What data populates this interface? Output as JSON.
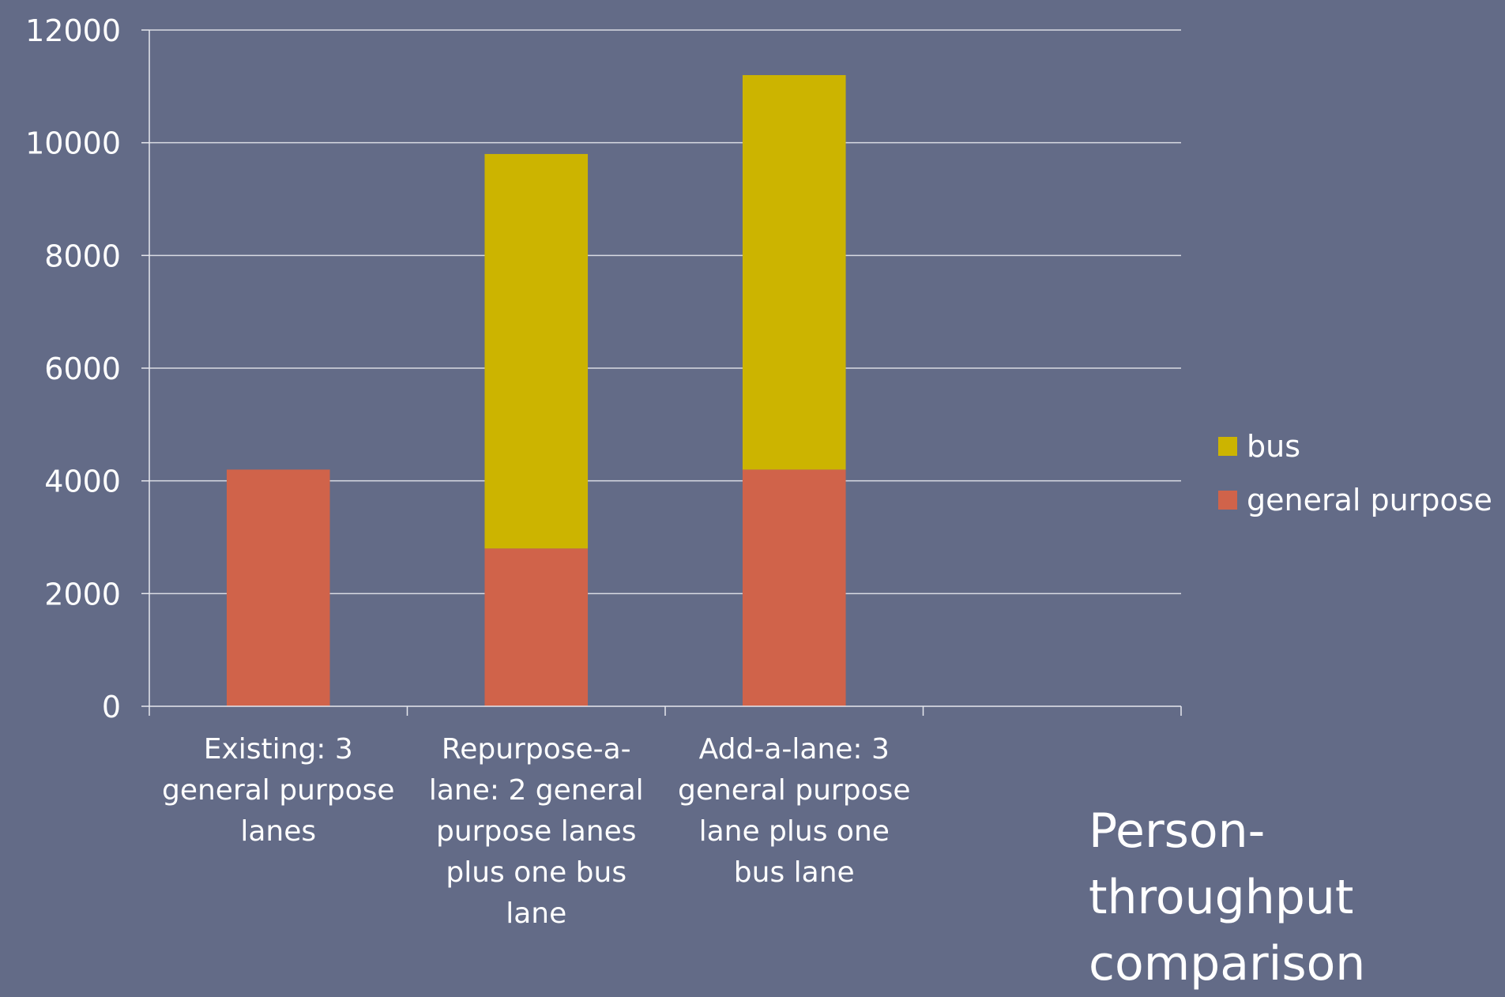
{
  "colors": {
    "background": "#636b87",
    "gridline": "#d9dbe3",
    "axis": "#e6e8ee",
    "text": "#ffffff",
    "bus": "#ccb400",
    "general_purpose": "#d0634a"
  },
  "caption": {
    "line1": "Person-throughput",
    "line2": "comparison"
  },
  "chart_data": {
    "type": "bar",
    "stacked": true,
    "categories": [
      [
        "Existing: 3",
        "general purpose",
        "lanes"
      ],
      [
        "Repurpose-a-",
        "lane: 2 general",
        "purpose lanes",
        "plus one bus",
        "lane"
      ],
      [
        "Add-a-lane: 3",
        "general purpose",
        "lane plus one",
        "bus lane"
      ],
      [
        ""
      ]
    ],
    "series": [
      {
        "name": "general purpose",
        "color": "#d0634a",
        "values": [
          4200,
          2800,
          4200,
          null
        ]
      },
      {
        "name": "bus",
        "color": "#ccb400",
        "values": [
          0,
          7000,
          7000,
          null
        ]
      }
    ],
    "legend_order": [
      "bus",
      "general purpose"
    ],
    "legend_position": "right",
    "ylim": [
      0,
      12000
    ],
    "yticks": [
      "0",
      "2000",
      "4000",
      "6000",
      "8000",
      "10000",
      "12000"
    ],
    "grid": true,
    "title": "Person-throughput comparison",
    "xlabel": "",
    "ylabel": ""
  }
}
